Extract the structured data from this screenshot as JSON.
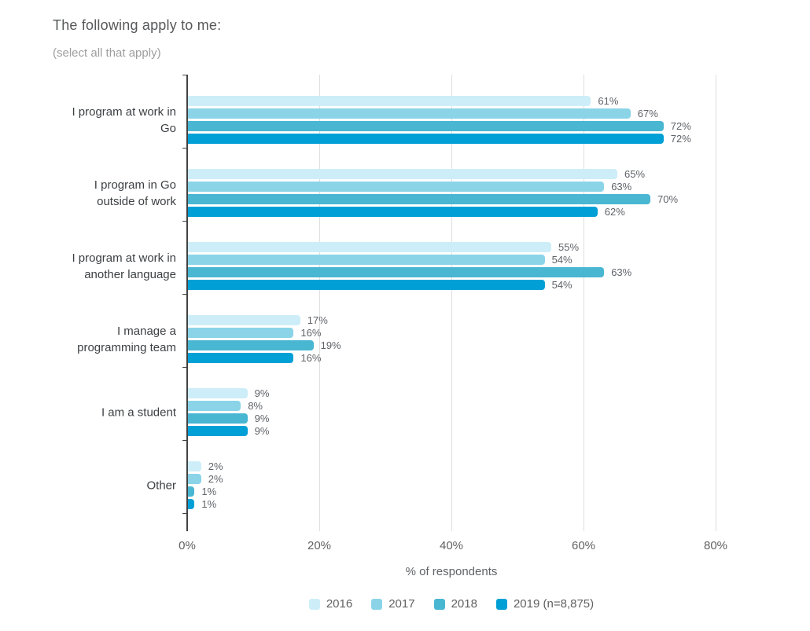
{
  "header": {
    "title": "The following apply to me:",
    "subtitle": "(select all that apply)"
  },
  "chart_data": {
    "type": "bar",
    "orientation": "horizontal",
    "title": "The following apply to me:",
    "subtitle": "(select all that apply)",
    "categories": [
      "I program at work in Go",
      "I program in Go outside of work",
      "I program at work in another language",
      "I manage a programming team",
      "I am a student",
      "Other"
    ],
    "series": [
      {
        "name": "2016",
        "color": "#cdeef8",
        "values": [
          61,
          65,
          55,
          17,
          9,
          2
        ]
      },
      {
        "name": "2017",
        "color": "#8bd4e8",
        "values": [
          67,
          63,
          54,
          16,
          8,
          2
        ]
      },
      {
        "name": "2018",
        "color": "#49b6d2",
        "values": [
          72,
          70,
          63,
          19,
          9,
          1
        ]
      },
      {
        "name": "2019 (n=8,875)",
        "color": "#00a0d6",
        "values": [
          72,
          62,
          54,
          16,
          9,
          1
        ]
      }
    ],
    "value_suffix": "%",
    "xlabel": "% of respondents",
    "x_ticks": [
      "0%",
      "20%",
      "40%",
      "60%",
      "80%"
    ],
    "x_tick_values": [
      0,
      20,
      40,
      60,
      80
    ],
    "xlim": [
      0,
      82
    ],
    "grid": true,
    "legend_position": "bottom"
  }
}
